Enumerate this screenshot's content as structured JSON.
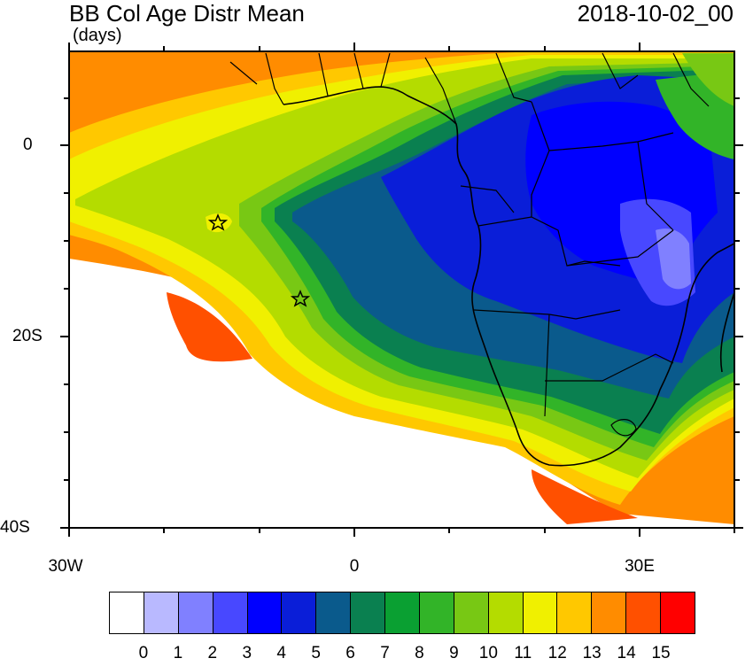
{
  "header": {
    "title": "BB Col Age Distr Mean",
    "units": "(days)",
    "date": "2018-10-02_00"
  },
  "axes": {
    "lat_labels": [
      "0",
      "20S",
      "40S"
    ],
    "lon_labels": [
      "30W",
      "0",
      "30E"
    ]
  },
  "map": {
    "extent": {
      "lon_min": -30,
      "lon_max": 40,
      "lat_min": -40,
      "lat_max": 10
    },
    "markers": [
      {
        "name": "star-marker-1",
        "lon": -14.5,
        "lat": -8
      },
      {
        "name": "star-marker-2",
        "lon": -6,
        "lat": -16
      }
    ]
  },
  "colorbar": {
    "labels": [
      "0",
      "1",
      "2",
      "3",
      "4",
      "5",
      "6",
      "7",
      "8",
      "9",
      "10",
      "11",
      "12",
      "13",
      "14",
      "15"
    ],
    "colors": [
      "#ffffff",
      "#b9b9ff",
      "#8080ff",
      "#4848ff",
      "#0000ff",
      "#0a1ed8",
      "#0a5a8c",
      "#0a8050",
      "#0aa032",
      "#32b428",
      "#78c814",
      "#b4dc00",
      "#f0f000",
      "#ffc800",
      "#ff8c00",
      "#ff5000",
      "#ff0000"
    ]
  }
}
